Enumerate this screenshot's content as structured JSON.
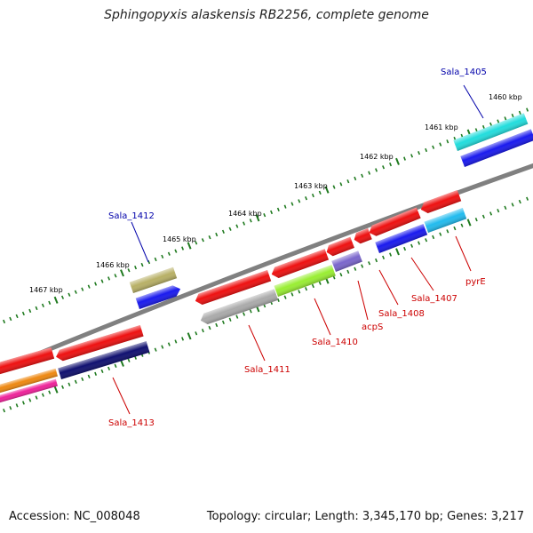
{
  "title": "Sphingopyxis alaskensis RB2256, complete genome",
  "footer": {
    "accession": "Accession: NC_008048",
    "topology": "Topology: circular; Length: 3,345,170 bp; Genes: 3,217"
  },
  "colors": {
    "backbone": "#808080",
    "tick": "#1f7a1f",
    "label_blue": "#0000aa",
    "label_red": "#cc0000"
  },
  "scale_labels": [
    "1460 kbp",
    "1461 kbp",
    "1462 kbp",
    "1463 kbp",
    "1464 kbp",
    "1465 kbp",
    "1466 kbp",
    "1467 kbp"
  ],
  "gene_labels": [
    {
      "text": "Sala_1405",
      "color": "#0000aa"
    },
    {
      "text": "Sala_1412",
      "color": "#0000aa"
    },
    {
      "text": "pyrE",
      "color": "#cc0000"
    },
    {
      "text": "Sala_1407",
      "color": "#cc0000"
    },
    {
      "text": "Sala_1408",
      "color": "#cc0000"
    },
    {
      "text": "acpS",
      "color": "#cc0000"
    },
    {
      "text": "Sala_1410",
      "color": "#cc0000"
    },
    {
      "text": "Sala_1411",
      "color": "#cc0000"
    },
    {
      "text": "Sala_1413",
      "color": "#cc0000"
    }
  ],
  "features": [
    {
      "name": "cyan-feature",
      "color": "#22dddd"
    },
    {
      "name": "blue-feature",
      "color": "#1a1aee"
    },
    {
      "name": "red-feature",
      "color": "#ee1111"
    },
    {
      "name": "olive-feature",
      "color": "#b8b066"
    },
    {
      "name": "gray-feature",
      "color": "#aaaaaa"
    },
    {
      "name": "green-feature",
      "color": "#99ee33"
    },
    {
      "name": "purple-feature",
      "color": "#7a66cc"
    },
    {
      "name": "navy-feature",
      "color": "#101070"
    },
    {
      "name": "orange-feature",
      "color": "#ee8811"
    },
    {
      "name": "pink-feature",
      "color": "#ee2299"
    }
  ]
}
